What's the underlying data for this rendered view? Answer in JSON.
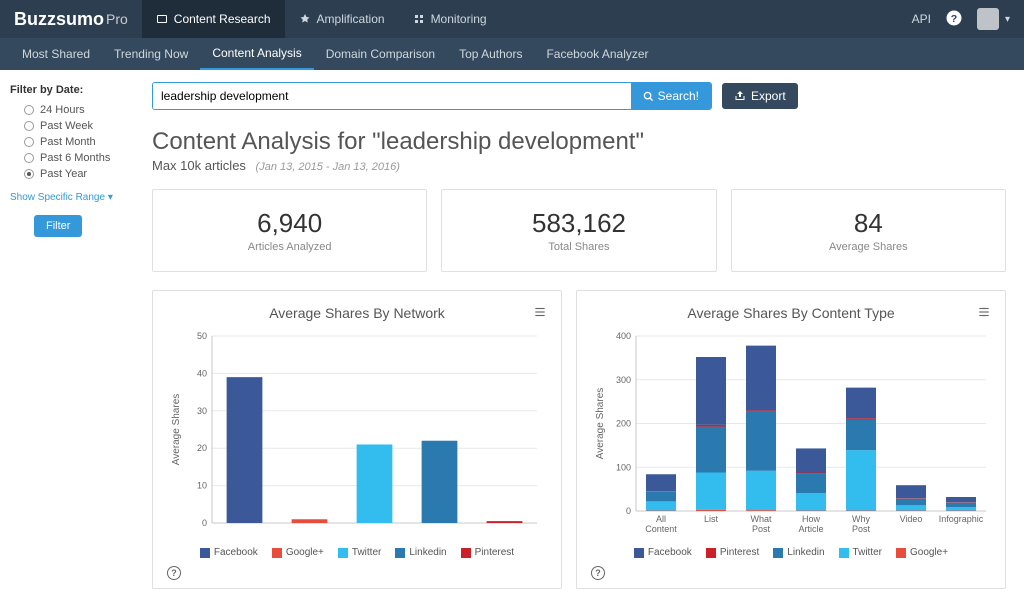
{
  "brand": {
    "name": "Buzzsumo",
    "suffix": "Pro"
  },
  "topnav": [
    {
      "label": "Content Research",
      "active": true
    },
    {
      "label": "Amplification",
      "active": false
    },
    {
      "label": "Monitoring",
      "active": false
    }
  ],
  "topright": {
    "api": "API"
  },
  "subnav": [
    {
      "label": "Most Shared",
      "active": false
    },
    {
      "label": "Trending Now",
      "active": false
    },
    {
      "label": "Content Analysis",
      "active": true
    },
    {
      "label": "Domain Comparison",
      "active": false
    },
    {
      "label": "Top Authors",
      "active": false
    },
    {
      "label": "Facebook Analyzer",
      "active": false
    }
  ],
  "sidebar": {
    "title": "Filter by Date:",
    "options": [
      {
        "label": "24 Hours",
        "selected": false
      },
      {
        "label": "Past Week",
        "selected": false
      },
      {
        "label": "Past Month",
        "selected": false
      },
      {
        "label": "Past 6 Months",
        "selected": false
      },
      {
        "label": "Past Year",
        "selected": true
      }
    ],
    "show_range": "Show Specific Range",
    "filter_label": "Filter"
  },
  "search": {
    "value": "leadership development",
    "button": "Search!",
    "export": "Export"
  },
  "header": {
    "title": "Content Analysis for \"leadership development\"",
    "subtitle": "Max 10k articles",
    "date_range": "(Jan 13, 2015 - Jan 13, 2016)"
  },
  "stats": [
    {
      "value": "6,940",
      "label": "Articles Analyzed"
    },
    {
      "value": "583,162",
      "label": "Total Shares"
    },
    {
      "value": "84",
      "label": "Average Shares"
    }
  ],
  "colors": {
    "facebook": "#3b5998",
    "google": "#e74c3c",
    "twitter": "#33bdef",
    "linkedin": "#2a7ab0",
    "pinterest": "#cb2027",
    "grid": "#e8e8e8",
    "axis": "#c8c8c8"
  },
  "chart1": {
    "title": "Average Shares By Network",
    "ylabel": "Average Shares",
    "ylim": [
      0,
      50
    ],
    "ytick_step": 10,
    "categories": [
      "Facebook",
      "Google+",
      "Twitter",
      "Linkedin",
      "Pinterest"
    ],
    "values": [
      39,
      1,
      21,
      22,
      0.5
    ],
    "bar_colors": [
      "#3b5998",
      "#e74c3c",
      "#33bdef",
      "#2a7ab0",
      "#cb2027"
    ],
    "legend": [
      {
        "label": "Facebook",
        "color": "#3b5998"
      },
      {
        "label": "Google+",
        "color": "#e74c3c"
      },
      {
        "label": "Twitter",
        "color": "#33bdef"
      },
      {
        "label": "Linkedin",
        "color": "#2a7ab0"
      },
      {
        "label": "Pinterest",
        "color": "#cb2027"
      }
    ]
  },
  "chart2": {
    "title": "Average Shares By Content Type",
    "ylabel": "Average Shares",
    "ylim": [
      0,
      400
    ],
    "ytick_step": 100,
    "categories": [
      "All Content",
      "List",
      "What Post",
      "How Article",
      "Why Post",
      "Video",
      "Infographic"
    ],
    "stack_order": [
      "google",
      "twitter",
      "linkedin",
      "pinterest",
      "facebook"
    ],
    "stack_colors": {
      "google": "#e74c3c",
      "twitter": "#33bdef",
      "linkedin": "#2a7ab0",
      "pinterest": "#cb2027",
      "facebook": "#3b5998"
    },
    "data": [
      {
        "google": 1,
        "twitter": 21,
        "linkedin": 22,
        "pinterest": 1,
        "facebook": 39
      },
      {
        "google": 3,
        "twitter": 85,
        "linkedin": 105,
        "pinterest": 4,
        "facebook": 155
      },
      {
        "google": 2,
        "twitter": 90,
        "linkedin": 135,
        "pinterest": 3,
        "facebook": 148
      },
      {
        "google": 1,
        "twitter": 40,
        "linkedin": 45,
        "pinterest": 2,
        "facebook": 55
      },
      {
        "google": 1,
        "twitter": 138,
        "linkedin": 70,
        "pinterest": 3,
        "facebook": 70
      },
      {
        "google": 1,
        "twitter": 12,
        "linkedin": 15,
        "pinterest": 1,
        "facebook": 30
      },
      {
        "google": 1,
        "twitter": 8,
        "linkedin": 10,
        "pinterest": 1,
        "facebook": 12
      }
    ],
    "legend": [
      {
        "label": "Facebook",
        "color": "#3b5998"
      },
      {
        "label": "Pinterest",
        "color": "#cb2027"
      },
      {
        "label": "Linkedin",
        "color": "#2a7ab0"
      },
      {
        "label": "Twitter",
        "color": "#33bdef"
      },
      {
        "label": "Google+",
        "color": "#e74c3c"
      }
    ]
  }
}
